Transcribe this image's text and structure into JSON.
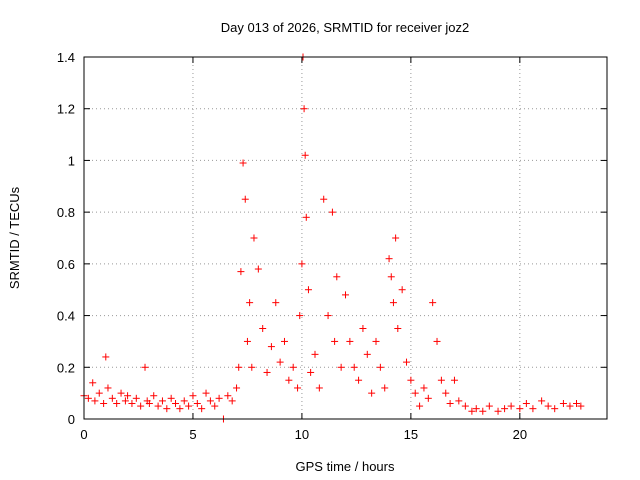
{
  "chart_data": {
    "type": "scatter",
    "title": "Day 013 of 2026, SRMTID for receiver joz2",
    "xlabel": "GPS time / hours",
    "ylabel": "SRMTID / TECUs",
    "xlim": [
      0,
      24
    ],
    "ylim": [
      0,
      1.4
    ],
    "xticks": [
      0,
      5,
      10,
      15,
      20
    ],
    "xtick_labels": [
      "0",
      "5",
      "10",
      "15",
      "20"
    ],
    "yticks": [
      0,
      0.2,
      0.4,
      0.6,
      0.8,
      1.0,
      1.2,
      1.4
    ],
    "ytick_labels": [
      "0",
      "0.2",
      "0.4",
      "0.6",
      "0.8",
      "1",
      "1.2",
      "1.4"
    ],
    "grid": true,
    "marker": "+",
    "series": [
      {
        "name": "SRMTID",
        "color": "#ff0000",
        "x": [
          0.0,
          0.2,
          0.4,
          0.5,
          0.7,
          0.9,
          1.0,
          1.1,
          1.3,
          1.5,
          1.7,
          1.9,
          2.0,
          2.2,
          2.4,
          2.6,
          2.8,
          2.9,
          3.0,
          3.2,
          3.4,
          3.6,
          3.8,
          4.0,
          4.2,
          4.4,
          4.6,
          4.8,
          5.0,
          5.2,
          5.4,
          5.6,
          5.8,
          6.0,
          6.2,
          6.4,
          6.6,
          6.8,
          7.0,
          7.1,
          7.2,
          7.3,
          7.4,
          7.5,
          7.6,
          7.7,
          7.8,
          8.0,
          8.2,
          8.4,
          8.6,
          8.8,
          9.0,
          9.2,
          9.4,
          9.6,
          9.8,
          9.9,
          10.0,
          10.05,
          10.1,
          10.15,
          10.2,
          10.3,
          10.4,
          10.6,
          10.8,
          11.0,
          11.2,
          11.4,
          11.5,
          11.6,
          11.8,
          12.0,
          12.2,
          12.4,
          12.6,
          12.8,
          13.0,
          13.2,
          13.4,
          13.6,
          13.8,
          14.0,
          14.1,
          14.2,
          14.3,
          14.4,
          14.6,
          14.8,
          15.0,
          15.2,
          15.4,
          15.6,
          15.8,
          16.0,
          16.2,
          16.4,
          16.6,
          16.8,
          17.0,
          17.2,
          17.5,
          17.8,
          18.0,
          18.3,
          18.6,
          19.0,
          19.3,
          19.6,
          20.0,
          20.3,
          20.6,
          21.0,
          21.3,
          21.6,
          22.0,
          22.3,
          22.6,
          22.8
        ],
        "y": [
          0.09,
          0.08,
          0.14,
          0.07,
          0.1,
          0.06,
          0.24,
          0.12,
          0.08,
          0.06,
          0.1,
          0.07,
          0.09,
          0.06,
          0.08,
          0.05,
          0.2,
          0.07,
          0.06,
          0.09,
          0.05,
          0.07,
          0.04,
          0.08,
          0.06,
          0.04,
          0.07,
          0.05,
          0.09,
          0.06,
          0.04,
          0.1,
          0.07,
          0.05,
          0.08,
          0.0,
          0.09,
          0.07,
          0.12,
          0.2,
          0.57,
          0.99,
          0.85,
          0.3,
          0.45,
          0.2,
          0.7,
          0.58,
          0.35,
          0.18,
          0.28,
          0.45,
          0.22,
          0.3,
          0.15,
          0.2,
          0.12,
          0.4,
          0.6,
          1.4,
          1.2,
          1.02,
          0.78,
          0.5,
          0.18,
          0.25,
          0.12,
          0.85,
          0.4,
          0.8,
          0.3,
          0.55,
          0.2,
          0.48,
          0.3,
          0.2,
          0.15,
          0.35,
          0.25,
          0.1,
          0.3,
          0.2,
          0.12,
          0.62,
          0.55,
          0.45,
          0.7,
          0.35,
          0.5,
          0.22,
          0.15,
          0.1,
          0.05,
          0.12,
          0.08,
          0.45,
          0.3,
          0.15,
          0.1,
          0.06,
          0.15,
          0.07,
          0.05,
          0.03,
          0.04,
          0.03,
          0.05,
          0.03,
          0.04,
          0.05,
          0.04,
          0.06,
          0.04,
          0.07,
          0.05,
          0.04,
          0.06,
          0.05,
          0.06,
          0.05
        ]
      }
    ]
  }
}
